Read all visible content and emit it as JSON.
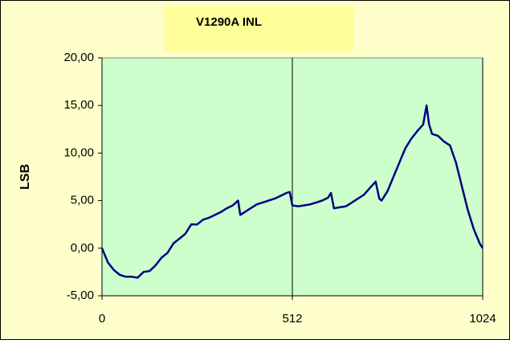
{
  "chart_data": {
    "type": "line",
    "title": "V1290A INL",
    "ylabel": "LSB",
    "x": [
      0,
      16,
      32,
      48,
      64,
      80,
      96,
      112,
      128,
      144,
      160,
      176,
      192,
      208,
      224,
      240,
      256,
      272,
      288,
      304,
      320,
      336,
      352,
      366,
      372,
      384,
      400,
      416,
      432,
      448,
      464,
      480,
      496,
      505,
      512,
      528,
      544,
      560,
      576,
      592,
      608,
      616,
      624,
      640,
      656,
      672,
      688,
      704,
      720,
      736,
      746,
      752,
      768,
      784,
      800,
      816,
      832,
      848,
      864,
      873,
      880,
      888,
      904,
      920,
      936,
      952,
      968,
      984,
      1000,
      1016,
      1024
    ],
    "values": [
      0,
      -1.5,
      -2.3,
      -2.8,
      -3.0,
      -3.0,
      -3.1,
      -2.5,
      -2.4,
      -1.8,
      -1.0,
      -0.5,
      0.5,
      1.0,
      1.5,
      2.5,
      2.5,
      3.0,
      3.2,
      3.5,
      3.8,
      4.2,
      4.5,
      5.0,
      3.5,
      3.8,
      4.2,
      4.6,
      4.8,
      5.0,
      5.2,
      5.5,
      5.8,
      5.9,
      4.5,
      4.4,
      4.5,
      4.6,
      4.8,
      5.0,
      5.3,
      5.8,
      4.2,
      4.3,
      4.4,
      4.8,
      5.2,
      5.6,
      6.3,
      7.0,
      5.2,
      5.0,
      6.0,
      7.5,
      9.0,
      10.5,
      11.5,
      12.3,
      13.0,
      15.0,
      13.0,
      12.0,
      11.8,
      11.2,
      10.8,
      9.0,
      6.5,
      4.0,
      2.0,
      0.5,
      0
    ],
    "color": "#000080",
    "xlim": [
      0,
      1024
    ],
    "xticks": [
      0,
      512,
      1024
    ],
    "ylim": [
      -5,
      20
    ],
    "yticks": [
      {
        "value": -5,
        "label": "-5,00"
      },
      {
        "value": 0,
        "label": "0,00"
      },
      {
        "value": 5,
        "label": "5,00"
      },
      {
        "value": 10,
        "label": "10,00"
      },
      {
        "value": 15,
        "label": "15,00"
      },
      {
        "value": 20,
        "label": "20,00"
      }
    ],
    "xgrid": true,
    "background": "#ffffcc",
    "plot_background": "#ccffcc",
    "title_background": "#ffff99"
  }
}
